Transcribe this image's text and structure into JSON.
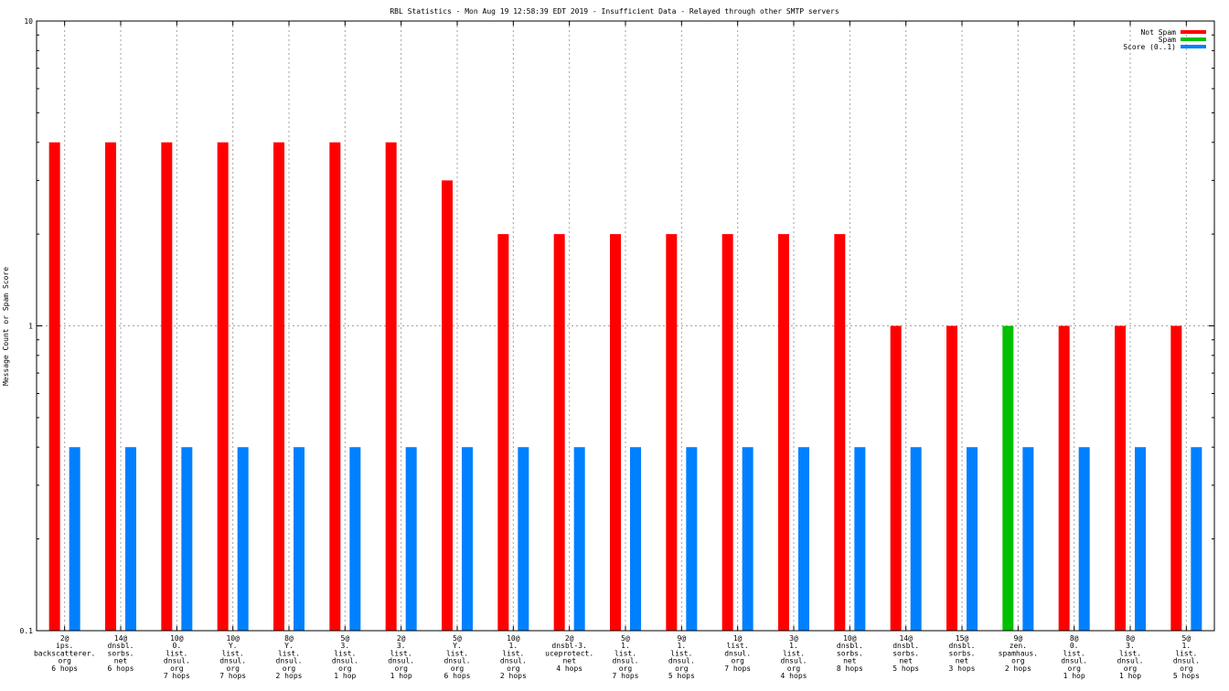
{
  "chart_data": {
    "type": "bar",
    "title": "RBL Statistics - Mon Aug 19 12:58:39 EDT 2019 - Insufficient Data - Relayed through other SMTP servers",
    "ylabel": "Message Count or Spam Score",
    "xlabel": "",
    "yscale": "log",
    "ylim": [
      0.1,
      10
    ],
    "yticks": [
      "0.1",
      "1",
      "10"
    ],
    "grid": true,
    "legend_position": "top-right",
    "categories": [
      [
        "2@",
        "ips.",
        "backscatterer.",
        "org",
        "6 hops"
      ],
      [
        "14@",
        "dnsbl.",
        "sorbs.",
        "net",
        "6 hops"
      ],
      [
        "10@",
        "0.",
        "list.",
        "dnsul.",
        "org",
        "7 hops"
      ],
      [
        "10@",
        "Y.",
        "list.",
        "dnsul.",
        "org",
        "7 hops"
      ],
      [
        "8@",
        "Y.",
        "list.",
        "dnsul.",
        "org",
        "2 hops"
      ],
      [
        "5@",
        "3.",
        "list.",
        "dnsul.",
        "org",
        "1 hop"
      ],
      [
        "2@",
        "3.",
        "list.",
        "dnsul.",
        "org",
        "1 hop"
      ],
      [
        "5@",
        "Y.",
        "list.",
        "dnsul.",
        "org",
        "6 hops"
      ],
      [
        "10@",
        "1.",
        "list.",
        "dnsul.",
        "org",
        "2 hops"
      ],
      [
        "2@",
        "dnsbl-3.",
        "uceprotect.",
        "net",
        "4 hops"
      ],
      [
        "5@",
        "1.",
        "list.",
        "dnsul.",
        "org",
        "7 hops"
      ],
      [
        "9@",
        "1.",
        "list.",
        "dnsul.",
        "org",
        "5 hops"
      ],
      [
        "1@",
        "list.",
        "dnsul.",
        "org",
        "7 hops"
      ],
      [
        "3@",
        "1.",
        "list.",
        "dnsul.",
        "org",
        "4 hops"
      ],
      [
        "10@",
        "dnsbl.",
        "sorbs.",
        "net",
        "8 hops"
      ],
      [
        "14@",
        "dnsbl.",
        "sorbs.",
        "net",
        "5 hops"
      ],
      [
        "15@",
        "dnsbl.",
        "sorbs.",
        "net",
        "3 hops"
      ],
      [
        "9@",
        "zen.",
        "spamhaus.",
        "org",
        "2 hops"
      ],
      [
        "8@",
        "0.",
        "list.",
        "dnsul.",
        "org",
        "1 hop"
      ],
      [
        "8@",
        "3.",
        "list.",
        "dnsul.",
        "org",
        "1 hop"
      ],
      [
        "5@",
        "1.",
        "list.",
        "dnsul.",
        "org",
        "5 hops"
      ]
    ],
    "series": [
      {
        "name": "Not Spam",
        "color": "#ff0000",
        "values": [
          4,
          4,
          4,
          4,
          4,
          4,
          4,
          3,
          2,
          2,
          2,
          2,
          2,
          2,
          2,
          1,
          1,
          0,
          1,
          1,
          1
        ]
      },
      {
        "name": "Spam",
        "color": "#00c000",
        "values": [
          0,
          0,
          0,
          0,
          0,
          0,
          0,
          0,
          0,
          0,
          0,
          0,
          0,
          0,
          0,
          0,
          0,
          1,
          0,
          0,
          0
        ]
      },
      {
        "name": "Score (0..1)",
        "color": "#0080ff",
        "values": [
          0.4,
          0.4,
          0.4,
          0.4,
          0.4,
          0.4,
          0.4,
          0.4,
          0.4,
          0.4,
          0.4,
          0.4,
          0.4,
          0.4,
          0.4,
          0.4,
          0.4,
          0.4,
          0.4,
          0.4,
          0.4
        ]
      }
    ]
  }
}
